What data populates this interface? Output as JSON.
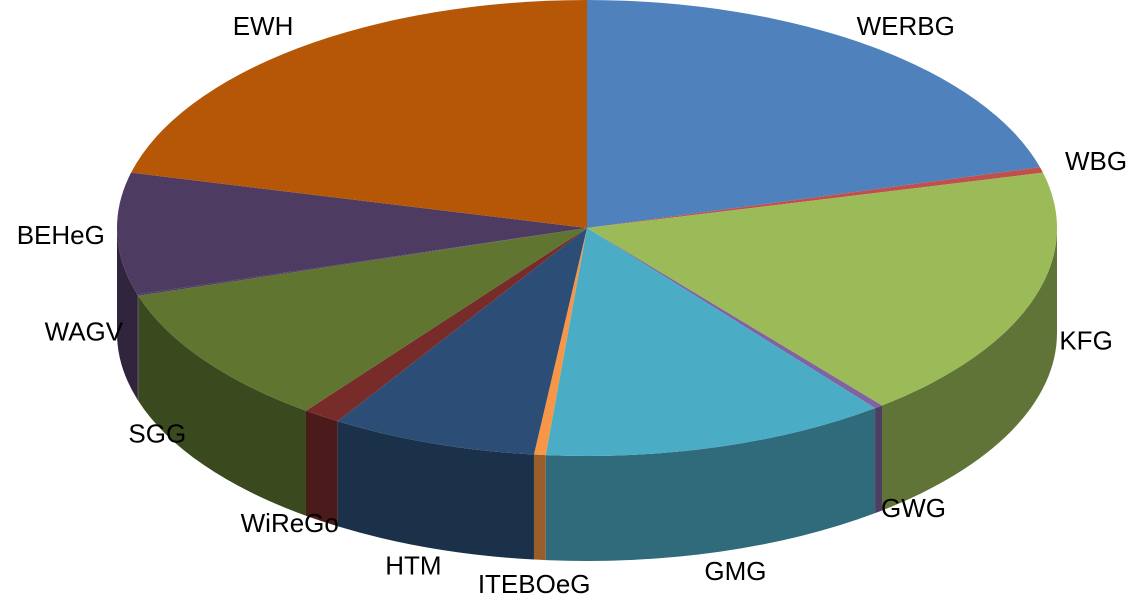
{
  "chart_data": {
    "type": "pie",
    "categories": [
      "WERBG",
      "WBG",
      "KFG",
      "GWG",
      "GMG",
      "ITEBOeG",
      "HTM",
      "WiReGo",
      "SGG",
      "WAGV",
      "BEHeG",
      "EWH"
    ],
    "values": [
      20.7,
      0.4,
      18.1,
      0.3,
      11.9,
      0.4,
      7.1,
      1.3,
      10.0,
      0.1,
      8.6,
      21.1
    ],
    "colors": [
      "#4f81bd",
      "#c0504d",
      "#9bbb59",
      "#8064a2",
      "#4bacc6",
      "#f79646",
      "#2c4d75",
      "#772c2a",
      "#5f7530",
      "#4d3b62",
      "#4d3b62",
      "#b65708"
    ]
  }
}
